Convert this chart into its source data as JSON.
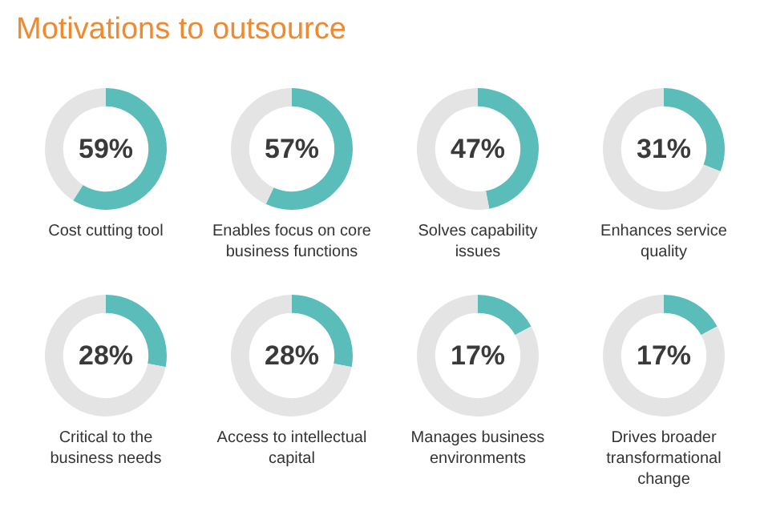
{
  "chart_data": [
    {
      "type": "other",
      "title": "Motivations to outsource"
    },
    {
      "type": "donut",
      "title": "Cost cutting tool",
      "categories": [
        null,
        null
      ],
      "values": [
        59,
        41
      ],
      "colors": [
        "#5bbdb9",
        "#e4e4e4"
      ],
      "annotations": [
        "59%"
      ]
    },
    {
      "type": "donut",
      "title": "Enables focus on core business functions",
      "categories": [
        null,
        null
      ],
      "values": [
        57,
        43
      ],
      "colors": [
        "#5bbdb9",
        "#e4e4e4"
      ],
      "annotations": [
        "57%"
      ]
    },
    {
      "type": "donut",
      "title": "Solves capability issues",
      "categories": [
        null,
        null
      ],
      "values": [
        47,
        53
      ],
      "colors": [
        "#5bbdb9",
        "#e4e4e4"
      ],
      "annotations": [
        "47%"
      ]
    },
    {
      "type": "donut",
      "title": "Enhances service quality",
      "categories": [
        null,
        null
      ],
      "values": [
        31,
        69
      ],
      "colors": [
        "#5bbdb9",
        "#e4e4e4"
      ],
      "annotations": [
        "31%"
      ]
    },
    {
      "type": "donut",
      "title": "Critical to the business needs",
      "categories": [
        null,
        null
      ],
      "values": [
        28,
        72
      ],
      "colors": [
        "#5bbdb9",
        "#e4e4e4"
      ],
      "annotations": [
        "28%"
      ]
    },
    {
      "type": "donut",
      "title": "Access to intellectual capital",
      "categories": [
        null,
        null
      ],
      "values": [
        28,
        72
      ],
      "colors": [
        "#5bbdb9",
        "#e4e4e4"
      ],
      "annotations": [
        "28%"
      ]
    },
    {
      "type": "donut",
      "title": "Manages business environments",
      "categories": [
        null,
        null
      ],
      "values": [
        17,
        83
      ],
      "colors": [
        "#5bbdb9",
        "#e4e4e4"
      ],
      "annotations": [
        "17%"
      ]
    },
    {
      "type": "donut",
      "title": "Drives broader transformational change",
      "categories": [
        null,
        null
      ],
      "values": [
        17,
        83
      ],
      "colors": [
        "#5bbdb9",
        "#e4e4e4"
      ],
      "annotations": [
        "17%"
      ]
    }
  ]
}
